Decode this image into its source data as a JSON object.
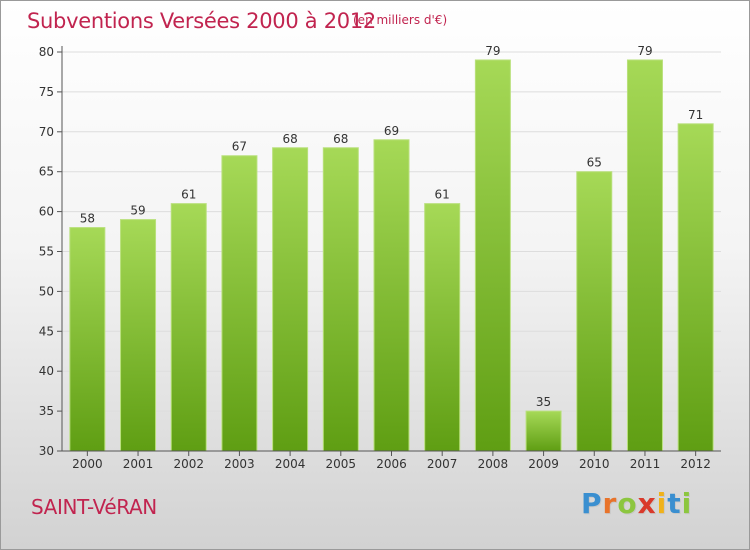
{
  "title": "Subventions Versées 2000 à 2012",
  "subtitle": "(en milliers d'€)",
  "commune": "SAINT-VéRAN",
  "logo": {
    "letters": [
      "P",
      "r",
      "o",
      "x",
      "i",
      "t",
      "i"
    ],
    "colors": [
      "#3a8fd0",
      "#e8732a",
      "#8cc63f",
      "#d93a2b",
      "#f0b21a",
      "#3a8fd0",
      "#8cc63f"
    ]
  },
  "colors": {
    "bar_top": "#a6d957",
    "bar_bottom": "#5f9e13",
    "axis": "#555555",
    "grid": "#dddddd",
    "text": "#333333"
  },
  "chart_data": {
    "type": "bar",
    "title": "Subventions Versées 2000 à 2012",
    "subtitle": "(en milliers d'€)",
    "categories": [
      "2000",
      "2001",
      "2002",
      "2003",
      "2004",
      "2005",
      "2006",
      "2007",
      "2008",
      "2009",
      "2010",
      "2011",
      "2012"
    ],
    "values": [
      58,
      59,
      61,
      67,
      68,
      68,
      69,
      61,
      79,
      35,
      65,
      79,
      71
    ],
    "ylim": [
      30,
      80
    ],
    "yticks": [
      30,
      35,
      40,
      45,
      50,
      55,
      60,
      65,
      70,
      75,
      80
    ],
    "grid": true,
    "data_labels": true
  }
}
